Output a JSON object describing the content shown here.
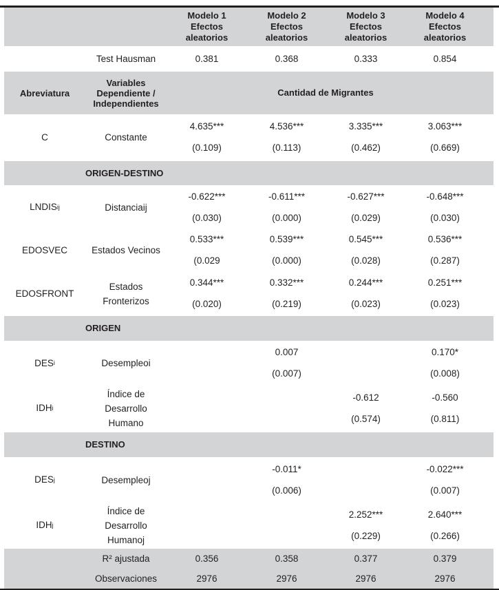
{
  "colors": {
    "band_gray": "#d2d4d5",
    "text": "#231f20",
    "rule": "#1f1f1f"
  },
  "header": {
    "models": [
      {
        "name": "Modelo 1",
        "sub": "Efectos\naleatorios"
      },
      {
        "name": "Modelo 2",
        "sub": "Efectos\naleatorios"
      },
      {
        "name": "Modelo 3",
        "sub": "Efectos\naleatorios"
      },
      {
        "name": "Modelo 4",
        "sub": "Efectos\naleatorios"
      }
    ]
  },
  "hausman": {
    "label": "Test Hausman",
    "values": [
      "0.381",
      "0.368",
      "0.333",
      "0.854"
    ]
  },
  "colheads": {
    "abbr": "Abreviatura",
    "vars": "Variables\nDependiente /\nIndependientes",
    "span": "Cantidad de Migrantes"
  },
  "sections": {
    "od": "ORIGEN-DESTINO",
    "o": "ORIGEN",
    "d": "DESTINO"
  },
  "vars": [
    {
      "abbr": "C",
      "sub": "",
      "name": "Constante",
      "cells": [
        {
          "est": "4.635***",
          "se": "(0.109)"
        },
        {
          "est": "4.536***",
          "se": "(0.113)"
        },
        {
          "est": "3.335***",
          "se": "(0.462)"
        },
        {
          "est": "3.063***",
          "se": "(0.669)"
        }
      ]
    },
    {
      "abbr": "LNDIS",
      "sub": "ij",
      "name": "Distanciaij",
      "cells": [
        {
          "est": "-0.622***",
          "se": "(0.030)"
        },
        {
          "est": "-0.611***",
          "se": "(0.000)"
        },
        {
          "est": "-0.627***",
          "se": "(0.029)"
        },
        {
          "est": "-0.648***",
          "se": "(0.030)"
        }
      ]
    },
    {
      "abbr": "EDOSVEC",
      "sub": "",
      "name": "Estados Vecinos",
      "cells": [
        {
          "est": "0.533***",
          "se": "(0.029"
        },
        {
          "est": "0.539***",
          "se": "(0.000)"
        },
        {
          "est": "0.545***",
          "se": "(0.028)"
        },
        {
          "est": "0.536***",
          "se": "(0.287)"
        }
      ]
    },
    {
      "abbr": "EDOSFRONT",
      "sub": "",
      "name": "Estados\nFronterizos",
      "cells": [
        {
          "est": "0.344***",
          "se": "(0.020)"
        },
        {
          "est": "0.332***",
          "se": "(0.219)"
        },
        {
          "est": "0.244***",
          "se": "(0.023)"
        },
        {
          "est": "0.251***",
          "se": "(0.023)"
        }
      ]
    },
    {
      "abbr": "DES",
      "sub": "i",
      "name": "Desempleoi",
      "cells": [
        {
          "est": "",
          "se": ""
        },
        {
          "est": "0.007",
          "se": "(0.007)"
        },
        {
          "est": "",
          "se": ""
        },
        {
          "est": "0.170*",
          "se": "(0.008)"
        }
      ]
    },
    {
      "abbr": "IDH",
      "sub": "i",
      "name": "Índice de\nDesarrollo\nHumano",
      "cells": [
        {
          "est": "",
          "se": ""
        },
        {
          "est": "",
          "se": ""
        },
        {
          "est": "-0.612",
          "se": "(0.574)"
        },
        {
          "est": "-0.560",
          "se": "(0.811)"
        }
      ]
    },
    {
      "abbr": "DES",
      "sub": "j",
      "name": "Desempleoj",
      "cells": [
        {
          "est": "",
          "se": ""
        },
        {
          "est": "-0.011*",
          "se": "(0.006)"
        },
        {
          "est": "",
          "se": ""
        },
        {
          "est": "-0.022***",
          "se": "(0.007)"
        }
      ]
    },
    {
      "abbr": "IDH",
      "sub": "j",
      "name": "Índice de\nDesarrollo\nHumanoj",
      "cells": [
        {
          "est": "",
          "se": ""
        },
        {
          "est": "",
          "se": ""
        },
        {
          "est": "2.252***",
          "se": "(0.229)"
        },
        {
          "est": "2.640***",
          "se": "(0.266)"
        }
      ]
    }
  ],
  "footer": {
    "r2_label": "R² ajustada",
    "r2_values": [
      "0.356",
      "0.358",
      "0.377",
      "0.379"
    ],
    "obs_label": "Observaciones",
    "obs_values": [
      "2976",
      "2976",
      "2976",
      "2976"
    ]
  }
}
